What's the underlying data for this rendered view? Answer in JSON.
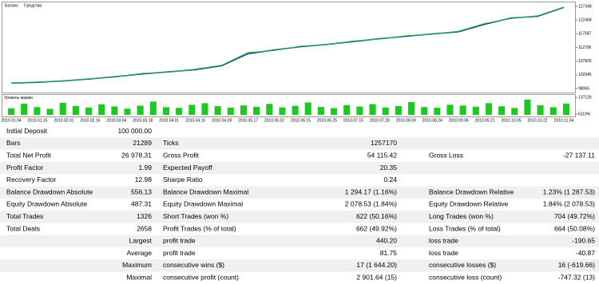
{
  "chart_data": [
    {
      "type": "line",
      "x": [
        "2010.01.04",
        "2010.01.15",
        "2010.02.01",
        "2010.02.16",
        "2010.03.04",
        "2010.03.18",
        "2010.04.01",
        "2010.04.15",
        "2010.04.28",
        "2010.05.17",
        "2010.06.02",
        "2010.06.15",
        "2010.06.25",
        "2010.07.15",
        "2010.07.28",
        "2010.08.09",
        "2010.08.24",
        "2010.09.06",
        "2010.09.21",
        "2010.10.05",
        "2010.10.22",
        "2010.11.04"
      ],
      "series": [
        {
          "name": "Баланс",
          "color": "#1f3fa8",
          "values": [
            100000,
            100300,
            100800,
            101500,
            102300,
            103300,
            104000,
            104800,
            106200,
            110500,
            111800,
            113000,
            113800,
            114800,
            115800,
            116700,
            117500,
            118300,
            121000,
            123200,
            123800,
            126978
          ]
        },
        {
          "name": "Средства",
          "color": "#22c022",
          "values": [
            100000,
            100400,
            100700,
            101600,
            102200,
            103500,
            103900,
            105000,
            106400,
            110900,
            111600,
            113200,
            113700,
            115000,
            115700,
            116900,
            117400,
            118500,
            121300,
            123000,
            124000,
            127100
          ]
        }
      ],
      "ylim": [
        96650,
        128770
      ],
      "yticks": [
        98065,
        102945,
        107826,
        112706,
        117587,
        122468,
        127348
      ]
    },
    {
      "type": "bar",
      "title": "Уровень маржи",
      "color": "#1ec81e",
      "values": [
        52000,
        88000,
        61000,
        47000,
        95000,
        70000,
        58000,
        83000,
        66000,
        49000,
        72000,
        104000,
        60000,
        55000,
        79000,
        91000,
        68000,
        57000,
        74000,
        63000,
        86000,
        59000,
        71000,
        97000,
        62000,
        53000,
        77000,
        65000,
        84000,
        58000,
        69000,
        100000,
        61000,
        56000,
        80000,
        73000,
        64000,
        92000,
        67000,
        54000,
        120000,
        76000,
        60000,
        89000
      ],
      "ylim": [
        0,
        150000
      ],
      "yticks": [
        {
          "value": 6119,
          "label": "6119%"
        },
        137126
      ]
    }
  ],
  "report": {
    "summary_rows": [
      [
        "Initial Deposit",
        "100 000.00"
      ],
      [
        "Bars",
        "21289",
        "Ticks",
        "1257170"
      ],
      [
        "Total Net Profit",
        "26 978.31",
        "Gross Profit",
        "54 115.42",
        "Gross Loss",
        "-27 137.11"
      ],
      [
        "Profit Factor",
        "1.99",
        "Expected Payoff",
        "20.35"
      ],
      [
        "Recovery Factor",
        "12.98",
        "Sharpe Ratio",
        "0.24"
      ],
      [
        "Balance Drawdown Absolute",
        "556.13",
        "Balance Drawdown Maximal",
        "1 294.17 (1.16%)",
        "Balance Drawdown Relative",
        "1.23% (1 287.53)"
      ],
      [
        "Equity Drawdown Absolute",
        "487.31",
        "Equity Drawdown Maximal",
        "2 078.53 (1.84%)",
        "Equity Drawdown Relative",
        "1.84% (2 078.53)"
      ],
      [
        "Total Trades",
        "1326",
        "Short Trades (won %)",
        "622 (50.16%)",
        "Long Trades (won %)",
        "704 (49.72%)"
      ],
      [
        "Total Deals",
        "2658",
        "Profit Trades (% of total)",
        "662 (49.92%)",
        "Loss Trades (% of total)",
        "664 (50.08%)"
      ]
    ],
    "trade_rows": [
      [
        "Largest",
        "profit trade",
        "440.20",
        "loss trade",
        "-190.65"
      ],
      [
        "Average",
        "profit trade",
        "81.75",
        "loss trade",
        "-40.87"
      ],
      [
        "Maximum",
        "consecutive wins ($)",
        "17 (1 644.20)",
        "consecutive losses ($)",
        "16 (-619.66)"
      ],
      [
        "Maximal",
        "consecutive profit (count)",
        "2 901.64 (15)",
        "consecutive loss (count)",
        "-747.32 (13)"
      ]
    ]
  }
}
